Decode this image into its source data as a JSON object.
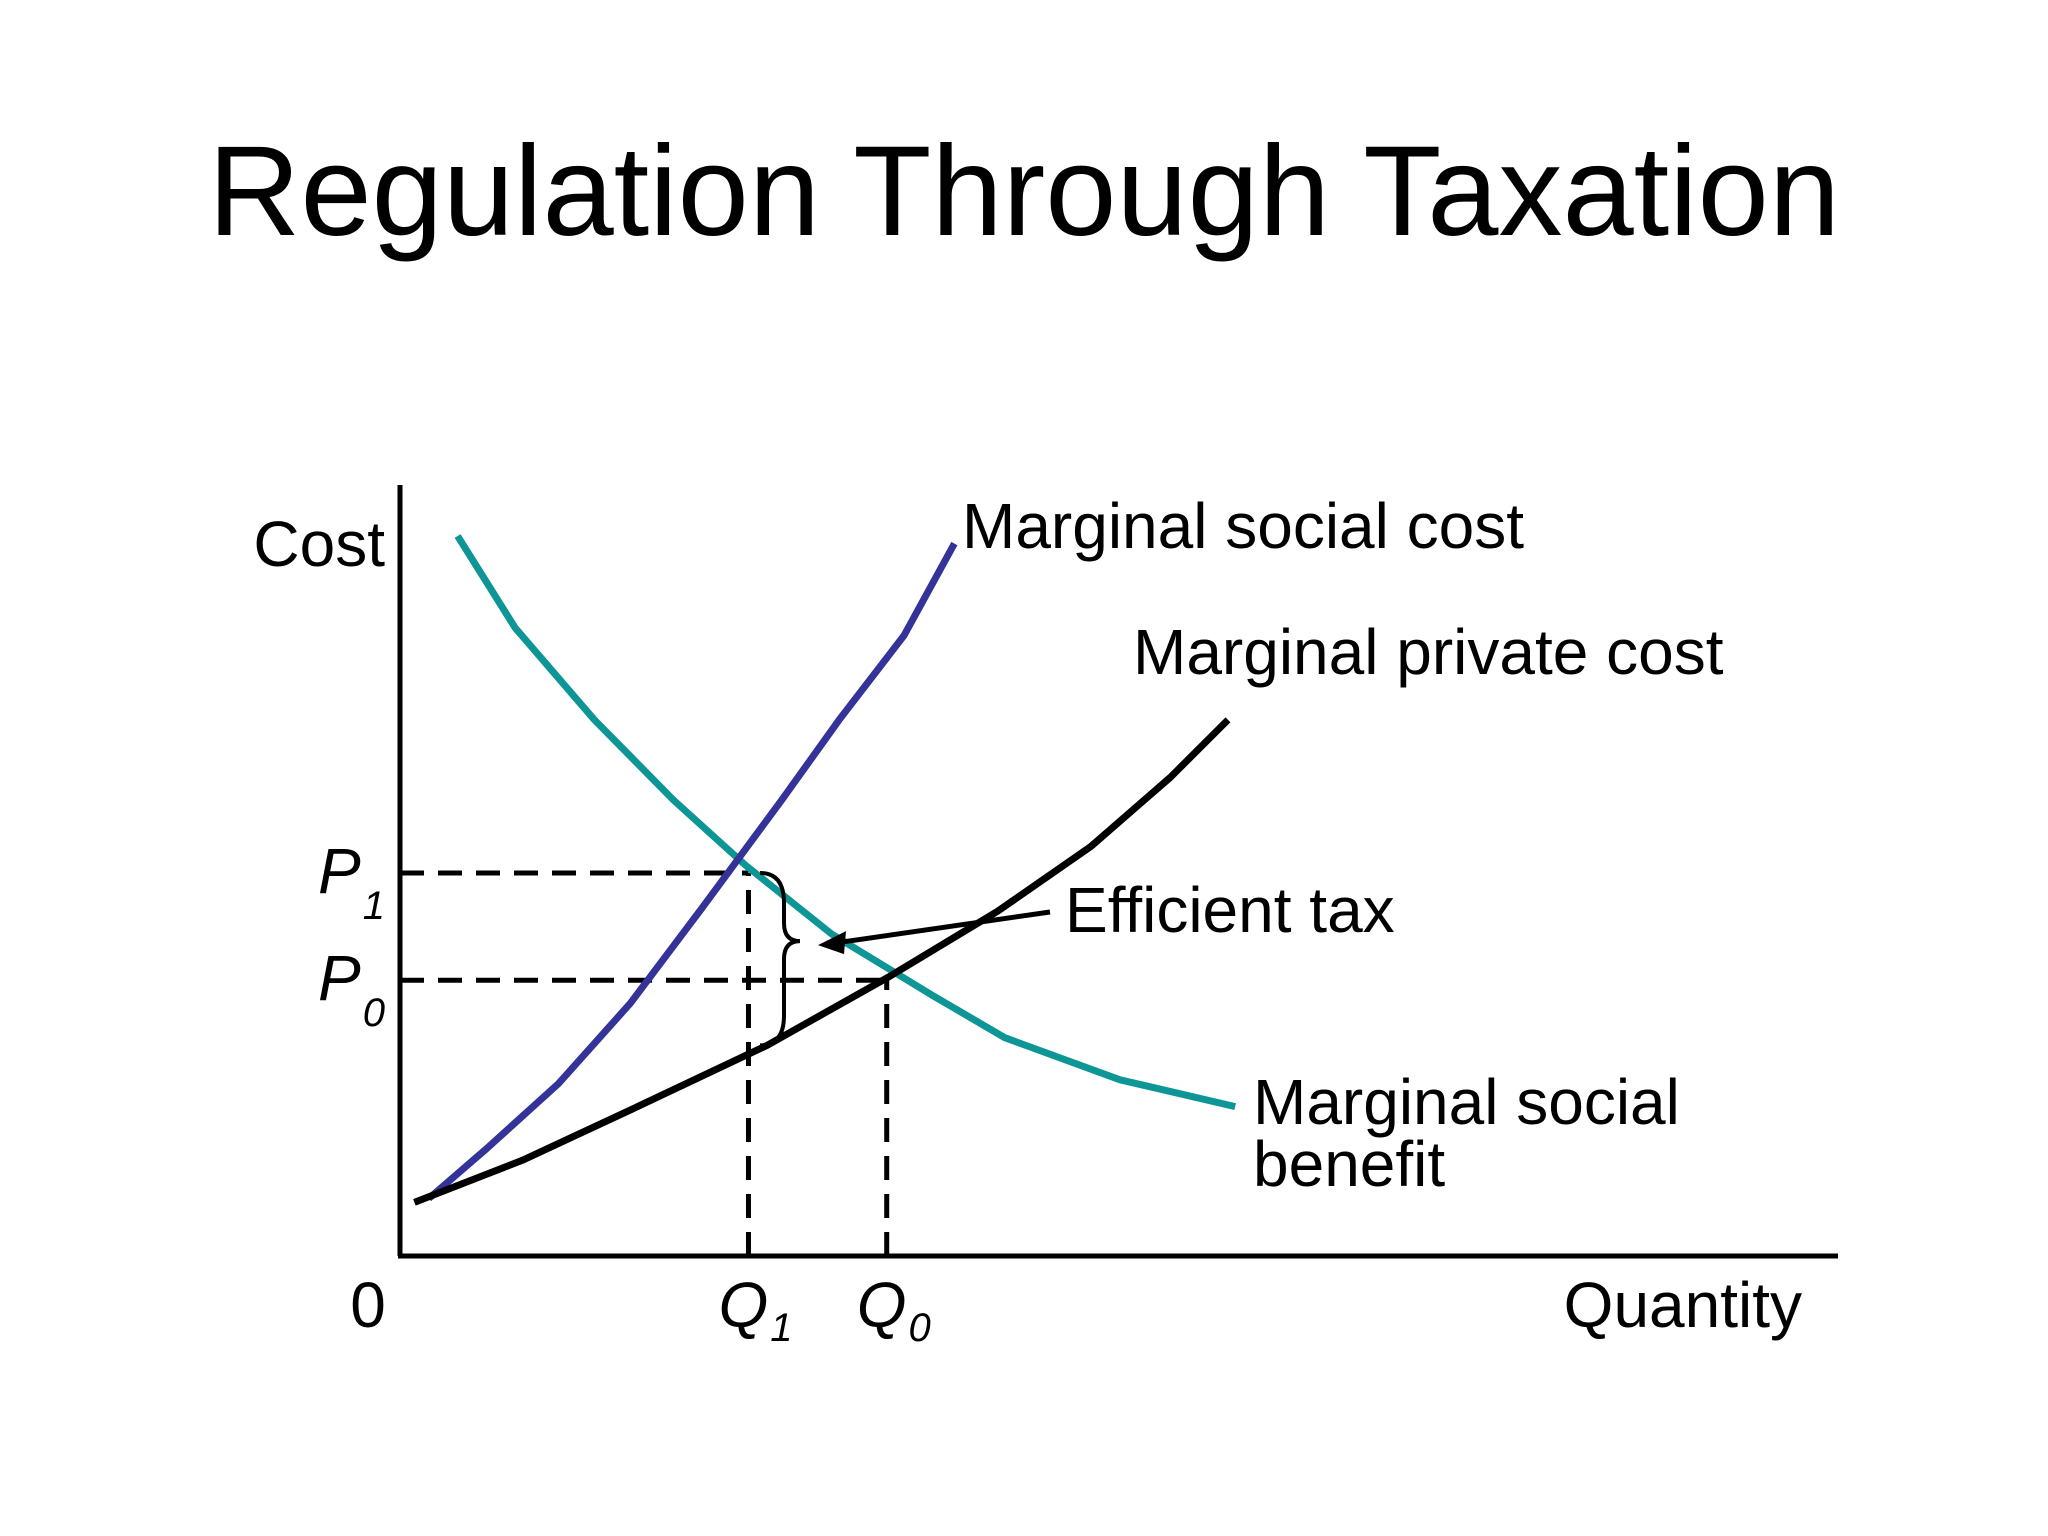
{
  "title": "Regulation Through Taxation",
  "chart_data": {
    "type": "line",
    "ylabel": "Cost",
    "xlabel": "Quantity",
    "origin_label": "0",
    "xlim": [
      0,
      10
    ],
    "ylim": [
      0,
      10
    ],
    "series": [
      {
        "name": "Marginal social benefit",
        "color": "#0e9696",
        "points": [
          [
            0.4,
            9.4
          ],
          [
            0.8,
            8.2
          ],
          [
            1.35,
            7.0
          ],
          [
            1.9,
            5.95
          ],
          [
            2.4,
            5.1
          ],
          [
            3.0,
            4.2
          ],
          [
            3.7,
            3.4
          ],
          [
            4.2,
            2.85
          ],
          [
            5.0,
            2.3
          ],
          [
            5.8,
            1.95
          ]
        ]
      },
      {
        "name": "Marginal social cost",
        "color": "#33339a",
        "points": [
          [
            0.2,
            0.75
          ],
          [
            0.6,
            1.4
          ],
          [
            1.1,
            2.25
          ],
          [
            1.6,
            3.3
          ],
          [
            2.1,
            4.55
          ],
          [
            2.65,
            5.95
          ],
          [
            3.05,
            7.0
          ],
          [
            3.5,
            8.1
          ],
          [
            3.85,
            9.3
          ]
        ]
      },
      {
        "name": "Marginal private cost",
        "color": "#000000",
        "points": [
          [
            0.1,
            0.7
          ],
          [
            0.85,
            1.25
          ],
          [
            1.65,
            1.95
          ],
          [
            2.55,
            2.75
          ],
          [
            3.4,
            3.65
          ],
          [
            4.15,
            4.5
          ],
          [
            4.8,
            5.35
          ],
          [
            5.35,
            6.25
          ],
          [
            5.75,
            7.0
          ]
        ]
      }
    ],
    "reference_lines": [
      {
        "label": "P",
        "subscript": "1",
        "axis": "y",
        "value": 5.0,
        "to_x": 2.42
      },
      {
        "label": "P",
        "subscript": "0",
        "axis": "y",
        "value": 3.6,
        "to_x": 3.38
      },
      {
        "label": "Q",
        "subscript": "1",
        "axis": "x",
        "value": 2.42,
        "to_y": 5.0
      },
      {
        "label": "Q",
        "subscript": "0",
        "axis": "x",
        "value": 3.38,
        "to_y": 3.6
      }
    ],
    "annotations": [
      {
        "label": "Efficient tax",
        "brace_x": 2.5,
        "from_y": 5.0,
        "to_y": 2.75
      }
    ],
    "series_labels": {
      "Marginal social cost": "Marginal social cost",
      "Marginal private cost": "Marginal private cost",
      "Marginal social benefit": [
        "Marginal social",
        "benefit"
      ]
    }
  }
}
